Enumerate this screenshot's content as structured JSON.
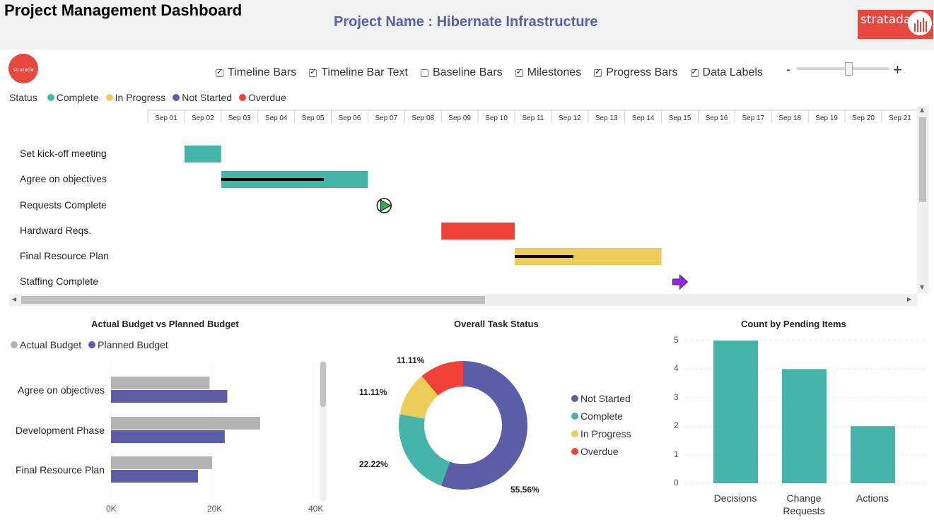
{
  "header": {
    "title": "Project Management Dashboard",
    "project_name": "Project Name : Hibernate Infrastructure",
    "logo_text": "stratada",
    "small_logo_text": "stratada"
  },
  "options": [
    {
      "label": "Timeline Bars",
      "checked": true
    },
    {
      "label": "Timeline Bar Text",
      "checked": true
    },
    {
      "label": "Baseline Bars",
      "checked": false
    },
    {
      "label": "Milestones",
      "checked": true
    },
    {
      "label": "Progress Bars",
      "checked": true
    },
    {
      "label": "Data Labels",
      "checked": true
    }
  ],
  "zoom": {
    "minus": "-",
    "plus": "+",
    "level": 0.55
  },
  "status_legend": {
    "label": "Status",
    "items": [
      {
        "name": "Complete",
        "color": "#45b5aa"
      },
      {
        "name": "In Progress",
        "color": "#eecc5a"
      },
      {
        "name": "Not Started",
        "color": "#5b5ea6"
      },
      {
        "name": "Overdue",
        "color": "#ef4136"
      }
    ]
  },
  "gantt": {
    "dates": [
      "Sep 01",
      "Sep 02",
      "Sep 03",
      "Sep 04",
      "Sep 05",
      "Sep 06",
      "Sep 07",
      "Sep 08",
      "Sep 09",
      "Sep 10",
      "Sep 11",
      "Sep 12",
      "Sep 13",
      "Sep 14",
      "Sep 15",
      "Sep 16",
      "Sep 17",
      "Sep 18",
      "Sep 19",
      "Sep 20",
      "Sep 21"
    ],
    "tasks": [
      {
        "name": "Set kick-off meeting",
        "type": "bar",
        "start": "Sep 02",
        "end": "Sep 03",
        "status": "Complete",
        "color": "#45b5aa",
        "progress": 0
      },
      {
        "name": "Agree on objectives",
        "type": "bar",
        "start": "Sep 03",
        "end": "Sep 07",
        "status": "Complete",
        "color": "#45b5aa",
        "progress": 0.7
      },
      {
        "name": "Requests Complete",
        "type": "milestone",
        "date": "Sep 08",
        "shape": "play-circle",
        "color": "#2db34a"
      },
      {
        "name": "Hardward Reqs.",
        "type": "bar",
        "start": "Sep 09",
        "end": "Sep 11",
        "status": "Overdue",
        "color": "#ef4136",
        "progress": 0
      },
      {
        "name": "Final Resource Plan",
        "type": "bar",
        "start": "Sep 11",
        "end": "Sep 15",
        "status": "In Progress",
        "color": "#eecc5a",
        "progress": 0.4
      },
      {
        "name": "Staffing Complete",
        "type": "milestone",
        "date": "Sep 16",
        "shape": "arrow-right",
        "color": "#9b1fe8"
      }
    ]
  },
  "budget": {
    "title": "Actual Budget vs Planned Budget",
    "legend": [
      {
        "name": "Actual Budget",
        "color": "#b3b3b3"
      },
      {
        "name": "Planned Budget",
        "color": "#5b5ea6"
      }
    ],
    "ticks": [
      "0K",
      "20K",
      "40K"
    ]
  },
  "task_status": {
    "title": "Overall Task Status",
    "legend": [
      {
        "name": "Not Started",
        "color": "#5b5ea6"
      },
      {
        "name": "Complete",
        "color": "#45b5aa"
      },
      {
        "name": "In Progress",
        "color": "#eecc5a"
      },
      {
        "name": "Overdue",
        "color": "#ef4136"
      }
    ]
  },
  "pending": {
    "title": "Count by Pending Items"
  },
  "chart_data": [
    {
      "type": "bar",
      "orientation": "horizontal",
      "title": "Actual Budget vs Planned Budget",
      "categories": [
        "Agree on objectives",
        "Development Phase",
        "Final Resource Plan"
      ],
      "series": [
        {
          "name": "Actual Budget",
          "values": [
            19500,
            29500,
            20000
          ],
          "color": "#b3b3b3"
        },
        {
          "name": "Planned Budget",
          "values": [
            23000,
            22500,
            17200
          ],
          "color": "#5b5ea6"
        }
      ],
      "xlim": [
        0,
        40000
      ],
      "legend": "top-left"
    },
    {
      "type": "pie",
      "donut": true,
      "title": "Overall Task Status",
      "categories": [
        "Not Started",
        "Complete",
        "In Progress",
        "Overdue"
      ],
      "values": [
        55.56,
        22.22,
        11.11,
        11.11
      ],
      "labels": [
        "55.56%",
        "22.22%",
        "11.11%",
        "11.11%"
      ],
      "colors": [
        "#5b5ea6",
        "#45b5aa",
        "#eecc5a",
        "#ef4136"
      ],
      "legend": "right"
    },
    {
      "type": "bar",
      "title": "Count by Pending Items",
      "categories": [
        "Decisions",
        "Change Requests",
        "Actions"
      ],
      "values": [
        5,
        4,
        2
      ],
      "color": "#45b5aa",
      "ylim": [
        0,
        5
      ],
      "yticks": [
        "0",
        "1",
        "2",
        "3",
        "4",
        "5"
      ],
      "grid": true
    }
  ]
}
